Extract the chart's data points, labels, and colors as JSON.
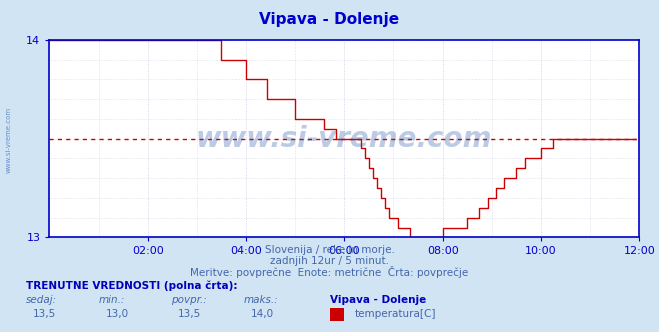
{
  "title": "Vipava - Dolenje",
  "title_color": "#0000cc",
  "bg_color": "#d0e4f4",
  "plot_bg_color": "#ffffff",
  "line_color": "#cc0000",
  "dashed_line_color": "#cc0000",
  "axis_color": "#0000cc",
  "grid_color": "#c8c8e0",
  "ylim": [
    13.0,
    14.0
  ],
  "yticks": [
    13,
    14
  ],
  "xlim": [
    0,
    144
  ],
  "xtick_labels": [
    "02:00",
    "04:00",
    "06:00",
    "08:00",
    "10:00",
    "12:00"
  ],
  "xtick_positions": [
    24,
    48,
    72,
    96,
    120,
    144
  ],
  "avg_value": 13.5,
  "subtitle1": "Slovenija / reke in morje.",
  "subtitle2": "zadnjih 12ur / 5 minut.",
  "subtitle3": "Meritve: povprečne  Enote: metrične  Črta: povprečje",
  "subtitle_color": "#4466aa",
  "footer_bold": "TRENUTNE VREDNOSTI (polna črta):",
  "footer_color": "#0000bb",
  "legend_label": "temperatura[C]",
  "legend_color": "#cc0000",
  "col_headers": [
    "sedaj:",
    "min.:",
    "povpr.:",
    "maks.:"
  ],
  "col_values": [
    "13,5",
    "13,0",
    "13,5",
    "14,0"
  ],
  "series_label": "Vipava - Dolenje",
  "watermark": "www.si-vreme.com",
  "watermark_color": "#2255aa",
  "left_label": "www.si-vreme.com",
  "temperature_data": [
    14.0,
    14.0,
    14.0,
    14.0,
    14.0,
    14.0,
    14.0,
    14.0,
    14.0,
    14.0,
    14.0,
    14.0,
    14.0,
    14.0,
    14.0,
    14.0,
    14.0,
    14.0,
    14.0,
    14.0,
    14.0,
    14.0,
    14.0,
    14.0,
    14.0,
    14.0,
    14.0,
    14.0,
    14.0,
    14.0,
    14.0,
    14.0,
    14.0,
    14.0,
    14.0,
    14.0,
    14.0,
    14.0,
    14.0,
    14.0,
    14.0,
    14.0,
    13.9,
    13.9,
    13.9,
    13.9,
    13.9,
    13.9,
    13.8,
    13.8,
    13.8,
    13.8,
    13.8,
    13.7,
    13.7,
    13.7,
    13.7,
    13.7,
    13.7,
    13.7,
    13.6,
    13.6,
    13.6,
    13.6,
    13.6,
    13.6,
    13.6,
    13.55,
    13.55,
    13.55,
    13.5,
    13.5,
    13.5,
    13.5,
    13.5,
    13.5,
    13.45,
    13.4,
    13.35,
    13.3,
    13.25,
    13.2,
    13.15,
    13.1,
    13.1,
    13.05,
    13.05,
    13.05,
    13.0,
    13.0,
    13.0,
    13.0,
    13.0,
    13.0,
    13.0,
    13.0,
    13.05,
    13.05,
    13.05,
    13.05,
    13.05,
    13.05,
    13.1,
    13.1,
    13.1,
    13.15,
    13.15,
    13.2,
    13.2,
    13.25,
    13.25,
    13.3,
    13.3,
    13.3,
    13.35,
    13.35,
    13.4,
    13.4,
    13.4,
    13.4,
    13.45,
    13.45,
    13.45,
    13.5,
    13.5,
    13.5,
    13.5,
    13.5,
    13.5,
    13.5,
    13.5,
    13.5,
    13.5,
    13.5,
    13.5,
    13.5,
    13.5,
    13.5,
    13.5,
    13.5,
    13.5,
    13.5,
    13.5,
    13.5
  ]
}
